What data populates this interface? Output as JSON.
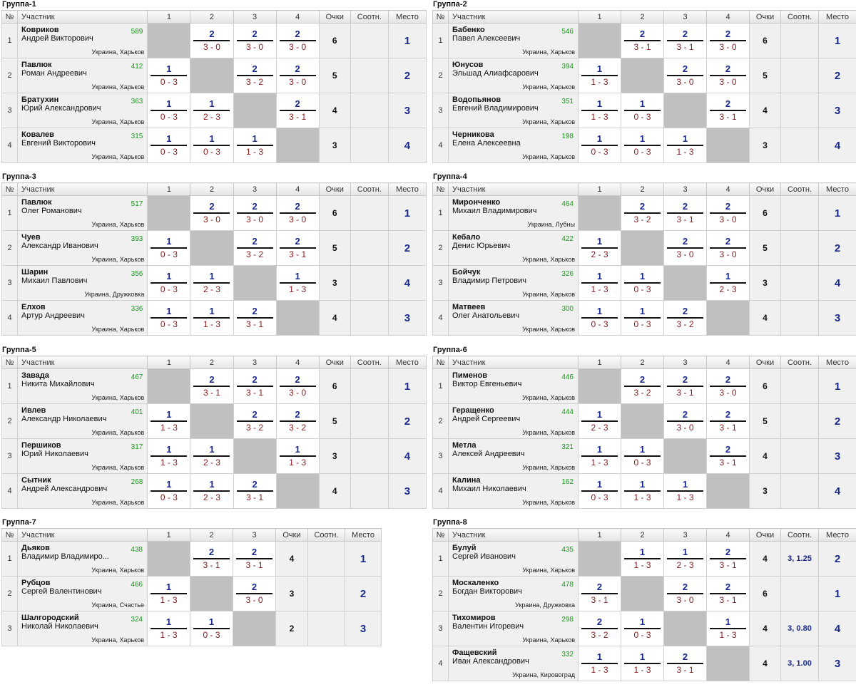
{
  "headers": {
    "num": "№",
    "participant": "Участник",
    "points": "Очки",
    "sootn": "Соотн.",
    "place": "Место"
  },
  "groups": [
    {
      "title": "Группа-1",
      "players": [
        {
          "last": "Ковриков",
          "first": "Андрей Викторович",
          "rating": "589",
          "loc": "Украина, Харьков",
          "points": "6",
          "sootn": "",
          "place": "1",
          "res": [
            null,
            [
              "2",
              "3 - 0"
            ],
            [
              "2",
              "3 - 0"
            ],
            [
              "2",
              "3 - 0"
            ]
          ]
        },
        {
          "last": "Павлюк",
          "first": "Роман Андреевич",
          "rating": "412",
          "loc": "Украина, Харьков",
          "points": "5",
          "sootn": "",
          "place": "2",
          "res": [
            [
              "1",
              "0 - 3"
            ],
            null,
            [
              "2",
              "3 - 2"
            ],
            [
              "2",
              "3 - 0"
            ]
          ]
        },
        {
          "last": "Братухин",
          "first": "Юрий Александрович",
          "rating": "363",
          "loc": "Украина, Харьков",
          "points": "4",
          "sootn": "",
          "place": "3",
          "res": [
            [
              "1",
              "0 - 3"
            ],
            [
              "1",
              "2 - 3"
            ],
            null,
            [
              "2",
              "3 - 1"
            ]
          ]
        },
        {
          "last": "Ковалев",
          "first": "Евгений Викторович",
          "rating": "315",
          "loc": "Украина, Харьков",
          "points": "3",
          "sootn": "",
          "place": "4",
          "res": [
            [
              "1",
              "0 - 3"
            ],
            [
              "1",
              "0 - 3"
            ],
            [
              "1",
              "1 - 3"
            ],
            null
          ]
        }
      ]
    },
    {
      "title": "Группа-2",
      "players": [
        {
          "last": "Бабенко",
          "first": "Павел Алексеевич",
          "rating": "546",
          "loc": "Украина, Харьков",
          "points": "6",
          "sootn": "",
          "place": "1",
          "res": [
            null,
            [
              "2",
              "3 - 1"
            ],
            [
              "2",
              "3 - 1"
            ],
            [
              "2",
              "3 - 0"
            ]
          ]
        },
        {
          "last": "Юнусов",
          "first": "Эльшад Алиафсарович",
          "rating": "394",
          "loc": "Украина, Харьков",
          "points": "5",
          "sootn": "",
          "place": "2",
          "res": [
            [
              "1",
              "1 - 3"
            ],
            null,
            [
              "2",
              "3 - 0"
            ],
            [
              "2",
              "3 - 0"
            ]
          ]
        },
        {
          "last": "Водопьянов",
          "first": "Евгений Владимирович",
          "rating": "351",
          "loc": "Украина, Харьков",
          "points": "4",
          "sootn": "",
          "place": "3",
          "res": [
            [
              "1",
              "1 - 3"
            ],
            [
              "1",
              "0 - 3"
            ],
            null,
            [
              "2",
              "3 - 1"
            ]
          ]
        },
        {
          "last": "Черникова",
          "first": "Елена Алексеевна",
          "rating": "198",
          "loc": "Украина, Харьков",
          "points": "3",
          "sootn": "",
          "place": "4",
          "res": [
            [
              "1",
              "0 - 3"
            ],
            [
              "1",
              "0 - 3"
            ],
            [
              "1",
              "1 - 3"
            ],
            null
          ]
        }
      ]
    },
    {
      "title": "Группа-3",
      "players": [
        {
          "last": "Павлюк",
          "first": "Олег Романович",
          "rating": "517",
          "loc": "Украина, Харьков",
          "points": "6",
          "sootn": "",
          "place": "1",
          "res": [
            null,
            [
              "2",
              "3 - 0"
            ],
            [
              "2",
              "3 - 0"
            ],
            [
              "2",
              "3 - 0"
            ]
          ]
        },
        {
          "last": "Чуев",
          "first": "Александр Иванович",
          "rating": "393",
          "loc": "Украина, Харьков",
          "points": "5",
          "sootn": "",
          "place": "2",
          "res": [
            [
              "1",
              "0 - 3"
            ],
            null,
            [
              "2",
              "3 - 2"
            ],
            [
              "2",
              "3 - 1"
            ]
          ]
        },
        {
          "last": "Шарин",
          "first": "Михаил Павлович",
          "rating": "356",
          "loc": "Украина, Дружковка",
          "points": "3",
          "sootn": "",
          "place": "4",
          "res": [
            [
              "1",
              "0 - 3"
            ],
            [
              "1",
              "2 - 3"
            ],
            null,
            [
              "1",
              "1 - 3"
            ]
          ]
        },
        {
          "last": "Елхов",
          "first": "Артур Андреевич",
          "rating": "336",
          "loc": "Украина, Харьков",
          "points": "4",
          "sootn": "",
          "place": "3",
          "res": [
            [
              "1",
              "0 - 3"
            ],
            [
              "1",
              "1 - 3"
            ],
            [
              "2",
              "3 - 1"
            ],
            null
          ]
        }
      ]
    },
    {
      "title": "Группа-4",
      "players": [
        {
          "last": "Миронченко",
          "first": "Михаил Владимирович",
          "rating": "464",
          "loc": "Украина, Лубны",
          "points": "6",
          "sootn": "",
          "place": "1",
          "res": [
            null,
            [
              "2",
              "3 - 2"
            ],
            [
              "2",
              "3 - 1"
            ],
            [
              "2",
              "3 - 0"
            ]
          ]
        },
        {
          "last": "Кебало",
          "first": "Денис Юрьевич",
          "rating": "422",
          "loc": "Украина, Харьков",
          "points": "5",
          "sootn": "",
          "place": "2",
          "res": [
            [
              "1",
              "2 - 3"
            ],
            null,
            [
              "2",
              "3 - 0"
            ],
            [
              "2",
              "3 - 0"
            ]
          ]
        },
        {
          "last": "Бойчук",
          "first": "Владимир Петрович",
          "rating": "326",
          "loc": "Украина, Харьков",
          "points": "3",
          "sootn": "",
          "place": "4",
          "res": [
            [
              "1",
              "1 - 3"
            ],
            [
              "1",
              "0 - 3"
            ],
            null,
            [
              "1",
              "2 - 3"
            ]
          ]
        },
        {
          "last": "Матвеев",
          "first": "Олег Анатольевич",
          "rating": "300",
          "loc": "Украина, Харьков",
          "points": "4",
          "sootn": "",
          "place": "3",
          "res": [
            [
              "1",
              "0 - 3"
            ],
            [
              "1",
              "0 - 3"
            ],
            [
              "2",
              "3 - 2"
            ],
            null
          ]
        }
      ]
    },
    {
      "title": "Группа-5",
      "players": [
        {
          "last": "Завада",
          "first": "Никита Михайлович",
          "rating": "467",
          "loc": "Украина, Харьков",
          "points": "6",
          "sootn": "",
          "place": "1",
          "res": [
            null,
            [
              "2",
              "3 - 1"
            ],
            [
              "2",
              "3 - 1"
            ],
            [
              "2",
              "3 - 0"
            ]
          ]
        },
        {
          "last": "Ивлев",
          "first": "Александр Николаевич",
          "rating": "401",
          "loc": "Украина, Харьков",
          "points": "5",
          "sootn": "",
          "place": "2",
          "res": [
            [
              "1",
              "1 - 3"
            ],
            null,
            [
              "2",
              "3 - 2"
            ],
            [
              "2",
              "3 - 2"
            ]
          ]
        },
        {
          "last": "Першиков",
          "first": "Юрий Николаевич",
          "rating": "317",
          "loc": "Украина, Харьков",
          "points": "3",
          "sootn": "",
          "place": "4",
          "res": [
            [
              "1",
              "1 - 3"
            ],
            [
              "1",
              "2 - 3"
            ],
            null,
            [
              "1",
              "1 - 3"
            ]
          ]
        },
        {
          "last": "Сытник",
          "first": "Андрей Александрович",
          "rating": "268",
          "loc": "Украина, Харьков",
          "points": "4",
          "sootn": "",
          "place": "3",
          "res": [
            [
              "1",
              "0 - 3"
            ],
            [
              "1",
              "2 - 3"
            ],
            [
              "2",
              "3 - 1"
            ],
            null
          ]
        }
      ]
    },
    {
      "title": "Группа-6",
      "players": [
        {
          "last": "Пименов",
          "first": "Виктор Евгеньевич",
          "rating": "446",
          "loc": "Украина, Харьков",
          "points": "6",
          "sootn": "",
          "place": "1",
          "res": [
            null,
            [
              "2",
              "3 - 2"
            ],
            [
              "2",
              "3 - 1"
            ],
            [
              "2",
              "3 - 0"
            ]
          ]
        },
        {
          "last": "Геращенко",
          "first": "Андрей Сергеевич",
          "rating": "444",
          "loc": "Украина, Харьков",
          "points": "5",
          "sootn": "",
          "place": "2",
          "res": [
            [
              "1",
              "2 - 3"
            ],
            null,
            [
              "2",
              "3 - 0"
            ],
            [
              "2",
              "3 - 1"
            ]
          ]
        },
        {
          "last": "Метла",
          "first": "Алексей Андреевич",
          "rating": "321",
          "loc": "Украина, Харьков",
          "points": "4",
          "sootn": "",
          "place": "3",
          "res": [
            [
              "1",
              "1 - 3"
            ],
            [
              "1",
              "0 - 3"
            ],
            null,
            [
              "2",
              "3 - 1"
            ]
          ]
        },
        {
          "last": "Калина",
          "first": "Михаил Николаевич",
          "rating": "162",
          "loc": "Украина, Харьков",
          "points": "3",
          "sootn": "",
          "place": "4",
          "res": [
            [
              "1",
              "0 - 3"
            ],
            [
              "1",
              "1 - 3"
            ],
            [
              "1",
              "1 - 3"
            ],
            null
          ]
        }
      ]
    },
    {
      "title": "Группа-7",
      "players": [
        {
          "last": "Дьяков",
          "first": "Владимир Владимиро...",
          "rating": "438",
          "loc": "Украина, Харьков",
          "points": "4",
          "sootn": "",
          "place": "1",
          "res": [
            null,
            [
              "2",
              "3 - 1"
            ],
            [
              "2",
              "3 - 1"
            ]
          ]
        },
        {
          "last": "Рубцов",
          "first": "Сергей Валентинович",
          "rating": "466",
          "loc": "Украина, Счастье",
          "points": "3",
          "sootn": "",
          "place": "2",
          "res": [
            [
              "1",
              "1 - 3"
            ],
            null,
            [
              "2",
              "3 - 0"
            ]
          ]
        },
        {
          "last": "Шалгородский",
          "first": "Николай Николаевич",
          "rating": "324",
          "loc": "Украина, Харьков",
          "points": "2",
          "sootn": "",
          "place": "3",
          "res": [
            [
              "1",
              "1 - 3"
            ],
            [
              "1",
              "0 - 3"
            ],
            null
          ]
        }
      ]
    },
    {
      "title": "Группа-8",
      "players": [
        {
          "last": "Булуй",
          "first": "Сергей Иванович",
          "rating": "435",
          "loc": "Украина, Харьков",
          "points": "4",
          "sootn": "3, 1.25",
          "place": "2",
          "res": [
            null,
            [
              "1",
              "1 - 3"
            ],
            [
              "1",
              "2 - 3"
            ],
            [
              "2",
              "3 - 1"
            ]
          ]
        },
        {
          "last": "Москаленко",
          "first": "Богдан Викторович",
          "rating": "478",
          "loc": "Украина, Дружковка",
          "points": "6",
          "sootn": "",
          "place": "1",
          "res": [
            [
              "2",
              "3 - 1"
            ],
            null,
            [
              "2",
              "3 - 0"
            ],
            [
              "2",
              "3 - 1"
            ]
          ]
        },
        {
          "last": "Тихомиров",
          "first": "Валентин Игоревич",
          "rating": "298",
          "loc": "Украина, Харьков",
          "points": "4",
          "sootn": "3, 0.80",
          "place": "4",
          "res": [
            [
              "2",
              "3 - 2"
            ],
            [
              "1",
              "0 - 3"
            ],
            null,
            [
              "1",
              "1 - 3"
            ]
          ]
        },
        {
          "last": "Фащевский",
          "first": "Иван Александрович",
          "rating": "332",
          "loc": "Украина, Кировоград",
          "points": "4",
          "sootn": "3, 1.00",
          "place": "3",
          "res": [
            [
              "1",
              "1 - 3"
            ],
            [
              "1",
              "1 - 3"
            ],
            [
              "2",
              "3 - 1"
            ],
            null
          ]
        }
      ]
    }
  ]
}
